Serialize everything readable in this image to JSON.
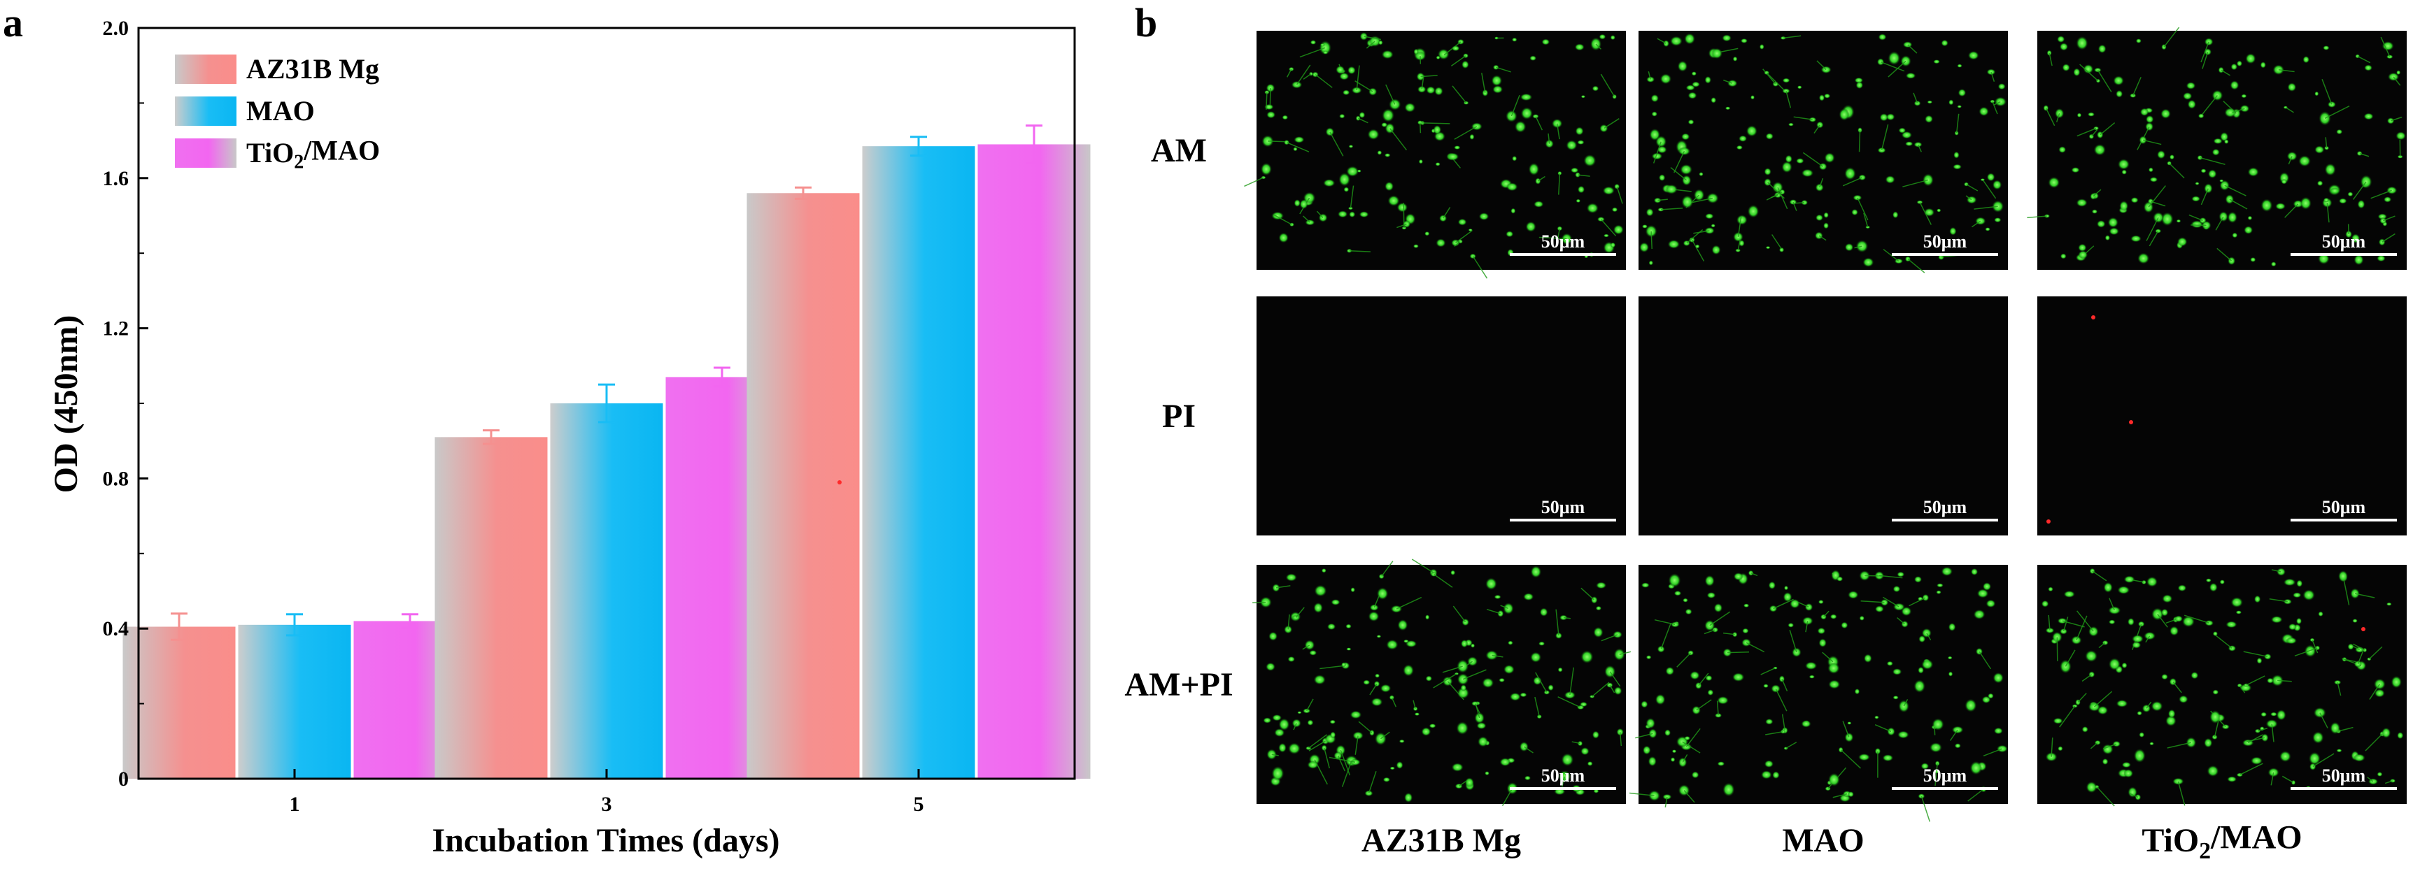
{
  "panel_a_letter": "a",
  "panel_b_letter": "b",
  "chart_data": {
    "type": "bar",
    "title": "",
    "xlabel": "Incubation Times (days)",
    "ylabel": "OD (450nm)",
    "categories": [
      "1",
      "3",
      "5"
    ],
    "ylim": [
      0,
      2.0
    ],
    "yticks": [
      "0",
      "0.4",
      "0.8",
      "1.2",
      "1.6",
      "2.0"
    ],
    "legend_position": "top-left",
    "series": [
      {
        "name": "AZ31B Mg",
        "values": [
          0.405,
          0.91,
          1.56
        ],
        "errors": [
          0.035,
          0.018,
          0.015
        ],
        "color": "#f5908f"
      },
      {
        "name": "MAO",
        "values": [
          0.41,
          1.0,
          1.685
        ],
        "errors": [
          0.028,
          0.05,
          0.025
        ],
        "color": "#19bdf5"
      },
      {
        "name": "TiO2/MAO",
        "values": [
          0.42,
          1.07,
          1.69
        ],
        "errors": [
          0.018,
          0.025,
          0.05
        ],
        "color": "#f266f0"
      }
    ]
  },
  "micrographs": {
    "rows": [
      "AM",
      "PI",
      "AM+PI"
    ],
    "columns": [
      "AZ31B Mg",
      "MAO",
      "TiO2/MAO"
    ],
    "scale_bar": "50μm"
  }
}
